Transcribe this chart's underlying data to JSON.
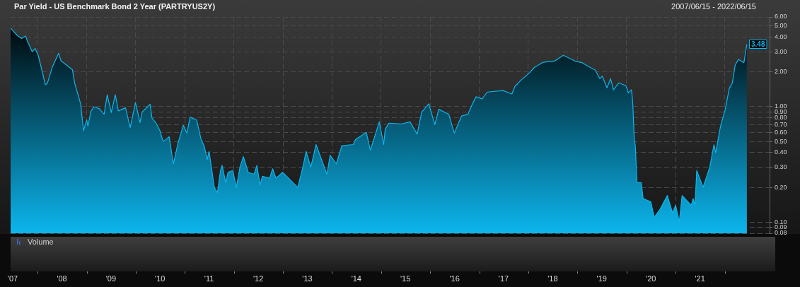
{
  "chart_data": {
    "type": "area",
    "title": "Par Yield - US Benchmark Bond 2 Year (PARTRYUS2Y)",
    "subtitle": "2007/06/15 - 2022/06/15",
    "x": [
      "2007-06-15",
      "2007-08-08",
      "2007-09-05",
      "2007-10-04",
      "2007-10-18",
      "2007-11-23",
      "2007-12-14",
      "2008-01-06",
      "2008-02-11",
      "2008-02-28",
      "2008-03-15",
      "2008-04-20",
      "2008-06-06",
      "2008-06-24",
      "2008-09-17",
      "2008-10-04",
      "2008-11-17",
      "2008-12-09",
      "2009-01-01",
      "2009-01-10",
      "2009-02-02",
      "2009-02-23",
      "2009-04-06",
      "2009-05-11",
      "2009-06-03",
      "2009-07-03",
      "2009-08-02",
      "2009-08-25",
      "2009-10-17",
      "2009-11-21",
      "2009-12-30",
      "2010-02-02",
      "2010-02-18",
      "2010-04-18",
      "2010-05-02",
      "2010-06-02",
      "2010-06-28",
      "2010-07-24",
      "2010-09-07",
      "2010-10-08",
      "2010-11-13",
      "2010-12-21",
      "2011-01-17",
      "2011-02-09",
      "2011-03-30",
      "2011-05-01",
      "2011-05-27",
      "2011-06-17",
      "2011-07-01",
      "2011-08-09",
      "2011-09-01",
      "2011-09-24",
      "2011-10-06",
      "2011-11-02",
      "2011-11-19",
      "2011-12-24",
      "2012-01-20",
      "2012-02-16",
      "2012-03-12",
      "2012-04-17",
      "2012-05-31",
      "2012-06-21",
      "2012-07-14",
      "2012-08-01",
      "2012-09-23",
      "2012-10-16",
      "2012-11-10",
      "2012-12-29",
      "2013-04-21",
      "2013-06-01",
      "2013-06-22",
      "2013-07-27",
      "2013-09-04",
      "2013-11-24",
      "2013-12-18",
      "2014-02-02",
      "2014-03-15",
      "2014-06-08",
      "2014-06-25",
      "2014-09-13",
      "2014-10-13",
      "2014-12-19",
      "2015-01-20",
      "2015-02-01",
      "2015-02-28",
      "2015-06-03",
      "2015-08-04",
      "2015-09-26",
      "2015-10-31",
      "2015-12-22",
      "2016-02-05",
      "2016-03-05",
      "2016-05-19",
      "2016-06-29",
      "2016-08-21",
      "2016-10-08",
      "2016-11-11",
      "2016-12-08",
      "2017-01-21",
      "2017-03-01",
      "2017-06-27",
      "2017-08-31",
      "2017-09-23",
      "2017-11-07",
      "2018-01-16",
      "2018-02-12",
      "2018-04-21",
      "2018-07-18",
      "2018-09-18",
      "2018-12-24",
      "2019-02-06",
      "2019-03-21",
      "2019-05-13",
      "2019-06-17",
      "2019-07-05",
      "2019-08-09",
      "2019-09-05",
      "2019-09-26",
      "2019-11-05",
      "2019-12-28",
      "2020-01-15",
      "2020-02-07",
      "2020-02-16",
      "2020-02-28",
      "2020-03-07",
      "2020-03-19",
      "2020-04-20",
      "2020-05-04",
      "2020-06-30",
      "2020-07-26",
      "2020-09-08",
      "2020-10-31",
      "2020-12-09",
      "2021-01-01",
      "2021-01-28",
      "2021-02-18",
      "2021-04-27",
      "2021-05-11",
      "2021-05-25",
      "2021-06-07",
      "2021-07-24",
      "2021-09-12",
      "2021-10-13",
      "2021-10-26",
      "2021-12-01",
      "2022-01-05",
      "2022-02-04",
      "2022-02-27",
      "2022-03-20",
      "2022-04-14",
      "2022-05-24",
      "2022-06-15"
    ],
    "values": [
      4.8,
      4.1,
      3.9,
      4.1,
      3.7,
      3.0,
      3.2,
      2.8,
      1.9,
      1.55,
      1.6,
      2.2,
      2.9,
      2.5,
      2.1,
      1.6,
      1.06,
      0.62,
      0.77,
      0.68,
      0.91,
      1.0,
      0.96,
      0.86,
      1.27,
      0.89,
      1.27,
      0.92,
      0.98,
      0.66,
      1.09,
      0.73,
      0.9,
      1.05,
      0.8,
      0.72,
      0.63,
      0.5,
      0.55,
      0.32,
      0.49,
      0.69,
      0.59,
      0.81,
      0.77,
      0.53,
      0.45,
      0.35,
      0.41,
      0.2,
      0.18,
      0.28,
      0.31,
      0.22,
      0.27,
      0.28,
      0.2,
      0.3,
      0.37,
      0.27,
      0.26,
      0.31,
      0.21,
      0.25,
      0.24,
      0.29,
      0.24,
      0.27,
      0.2,
      0.31,
      0.41,
      0.3,
      0.47,
      0.26,
      0.38,
      0.32,
      0.46,
      0.47,
      0.52,
      0.6,
      0.42,
      0.74,
      0.47,
      0.64,
      0.72,
      0.71,
      0.74,
      0.58,
      0.9,
      1.06,
      0.7,
      0.95,
      0.86,
      0.59,
      0.83,
      0.86,
      1.06,
      1.22,
      1.17,
      1.34,
      1.38,
      1.29,
      1.5,
      1.7,
      2.0,
      2.18,
      2.43,
      2.5,
      2.79,
      2.46,
      2.41,
      2.24,
      2.08,
      1.75,
      1.84,
      1.46,
      1.75,
      1.4,
      1.61,
      1.52,
      1.32,
      1.4,
      1.12,
      0.53,
      0.46,
      0.22,
      0.22,
      0.16,
      0.15,
      0.11,
      0.13,
      0.17,
      0.12,
      0.14,
      0.1,
      0.17,
      0.14,
      0.16,
      0.14,
      0.28,
      0.2,
      0.3,
      0.47,
      0.4,
      0.68,
      0.95,
      1.44,
      1.61,
      2.3,
      2.57,
      2.41,
      3.48
    ],
    "color": "#0cb6ee",
    "xlim": [
      "2007-06-15",
      "2022-12-01"
    ],
    "ylim": [
      0.08,
      6
    ],
    "xticks": [
      {
        "value": "2007-07-01",
        "label": "'07"
      },
      {
        "value": "2008-01-01",
        "label": null
      },
      {
        "value": "2008-07-01",
        "label": "'08"
      },
      {
        "value": "2009-01-01",
        "label": null
      },
      {
        "value": "2009-07-01",
        "label": "'09"
      },
      {
        "value": "2010-01-01",
        "label": null
      },
      {
        "value": "2010-07-01",
        "label": "'10"
      },
      {
        "value": "2011-01-01",
        "label": null
      },
      {
        "value": "2011-07-01",
        "label": "'11"
      },
      {
        "value": "2012-01-01",
        "label": null
      },
      {
        "value": "2012-07-01",
        "label": "'12"
      },
      {
        "value": "2013-01-01",
        "label": null
      },
      {
        "value": "2013-07-01",
        "label": "'13"
      },
      {
        "value": "2014-01-01",
        "label": null
      },
      {
        "value": "2014-07-01",
        "label": "'14"
      },
      {
        "value": "2015-01-01",
        "label": null
      },
      {
        "value": "2015-07-01",
        "label": "'15"
      },
      {
        "value": "2016-01-01",
        "label": null
      },
      {
        "value": "2016-07-01",
        "label": "'16"
      },
      {
        "value": "2017-01-01",
        "label": null
      },
      {
        "value": "2017-07-01",
        "label": "'17"
      },
      {
        "value": "2018-01-01",
        "label": null
      },
      {
        "value": "2018-07-01",
        "label": "'18"
      },
      {
        "value": "2019-01-01",
        "label": null
      },
      {
        "value": "2019-07-01",
        "label": "'19"
      },
      {
        "value": "2020-01-01",
        "label": null
      },
      {
        "value": "2020-07-01",
        "label": "'20"
      },
      {
        "value": "2021-01-01",
        "label": null
      },
      {
        "value": "2021-07-01",
        "label": "'21"
      },
      {
        "value": "2022-01-01",
        "label": null
      }
    ],
    "yticks": [
      0.08,
      0.09,
      {
        "value": 0.1,
        "label": "0.10"
      },
      {
        "value": 0.2,
        "label": "0.20"
      },
      {
        "value": 0.3,
        "label": "0.30"
      },
      {
        "value": 0.4,
        "label": "0.40"
      },
      {
        "value": 0.5,
        "label": "0.50"
      },
      {
        "value": 0.6,
        "label": "0.60"
      },
      {
        "value": 0.7,
        "label": "0.70"
      },
      {
        "value": 0.8,
        "label": "0.80"
      },
      {
        "value": 0.9,
        "label": "0.90"
      },
      {
        "value": 1,
        "label": "1.00"
      },
      {
        "value": 2,
        "label": "2.00"
      },
      {
        "value": 3,
        "label": "3.00"
      },
      {
        "value": 4,
        "label": "4.00"
      },
      {
        "value": 5,
        "label": "5.00"
      },
      {
        "value": 6,
        "label": "6.00"
      }
    ],
    "log": "y",
    "grid": true,
    "annotations": [
      {
        "text": "3.48",
        "x": "2022-06-15",
        "y": 3.48
      },
      "Volume"
    ]
  }
}
